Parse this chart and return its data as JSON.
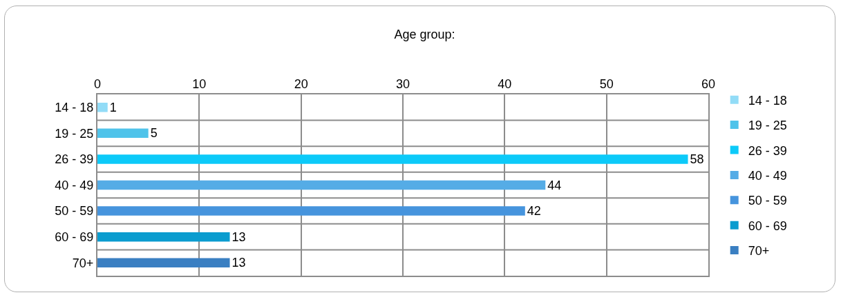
{
  "chart_data": {
    "type": "bar",
    "orientation": "horizontal",
    "title": "Age group:",
    "categories": [
      "14 - 18",
      "19 - 25",
      "26 - 39",
      "40 - 49",
      "50 - 59",
      "60 - 69",
      "70+"
    ],
    "series": [
      {
        "name": "14 - 18",
        "color": "#92dcf7",
        "values": [
          1,
          null,
          null,
          null,
          null,
          null,
          null
        ]
      },
      {
        "name": "19 - 25",
        "color": "#4fc3ea",
        "values": [
          null,
          5,
          null,
          null,
          null,
          null,
          null
        ]
      },
      {
        "name": "26 - 39",
        "color": "#0ccaf9",
        "values": [
          null,
          null,
          58,
          null,
          null,
          null,
          null
        ]
      },
      {
        "name": "40 - 49",
        "color": "#55ace6",
        "values": [
          null,
          null,
          null,
          44,
          null,
          null,
          null
        ]
      },
      {
        "name": "50 - 59",
        "color": "#4694dd",
        "values": [
          null,
          null,
          null,
          null,
          42,
          null,
          null
        ]
      },
      {
        "name": "60 - 69",
        "color": "#0a9ccf",
        "values": [
          null,
          null,
          null,
          null,
          null,
          13,
          null
        ]
      },
      {
        "name": "70+",
        "color": "#3a7fc2",
        "values": [
          null,
          null,
          null,
          null,
          null,
          null,
          13
        ]
      }
    ],
    "xlim": [
      0,
      60
    ],
    "xticks": [
      0,
      10,
      20,
      30,
      40,
      50,
      60
    ],
    "grid": true,
    "legend": "right",
    "data_labels": true
  }
}
